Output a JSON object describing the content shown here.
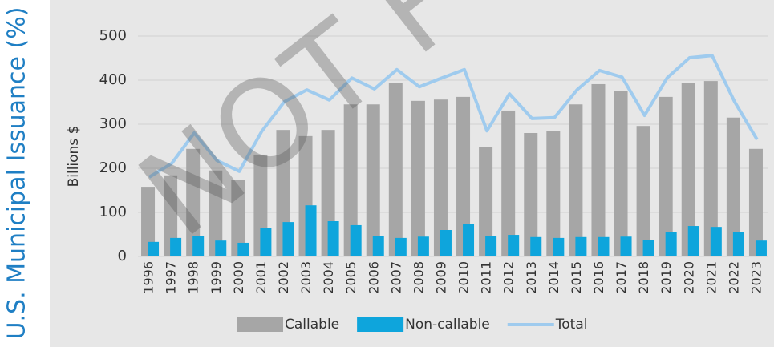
{
  "chart_data": {
    "type": "bar_line",
    "side_title": "U.S. Municipal Issuance (%)",
    "ylabel": "Billions $",
    "watermark": "NOT FOR",
    "categories": [
      "1996",
      "1997",
      "1998",
      "1999",
      "2000",
      "2001",
      "2002",
      "2003",
      "2004",
      "2005",
      "2006",
      "2007",
      "2008",
      "2009",
      "2010",
      "2011",
      "2012",
      "2013",
      "2014",
      "2015",
      "2016",
      "2017",
      "2018",
      "2019",
      "2020",
      "2021",
      "2022",
      "2023"
    ],
    "series": [
      {
        "name": "Callable",
        "color": "#a6a6a6",
        "kind": "bar",
        "values": [
          158,
          184,
          244,
          195,
          173,
          231,
          287,
          273,
          287,
          345,
          345,
          393,
          353,
          356,
          362,
          249,
          331,
          280,
          285,
          345,
          391,
          375,
          296,
          362,
          393,
          398,
          315,
          244
        ]
      },
      {
        "name": "Non-callable",
        "color": "#0ea5dc",
        "kind": "bar",
        "values": [
          33,
          42,
          47,
          36,
          31,
          64,
          78,
          116,
          80,
          71,
          47,
          42,
          45,
          60,
          73,
          47,
          49,
          44,
          42,
          44,
          44,
          45,
          38,
          55,
          69,
          67,
          55,
          36
        ]
      },
      {
        "name": "Total",
        "color": "#9fcbee",
        "kind": "line",
        "values": [
          180,
          211,
          280,
          218,
          193,
          284,
          351,
          378,
          355,
          405,
          380,
          424,
          385,
          405,
          424,
          285,
          369,
          313,
          315,
          378,
          422,
          407,
          320,
          405,
          451,
          456,
          351,
          265
        ]
      }
    ],
    "ylim": [
      0,
      500
    ],
    "yticks": [
      0,
      100,
      200,
      300,
      400,
      500
    ],
    "grid": true,
    "legend": "bottom"
  }
}
